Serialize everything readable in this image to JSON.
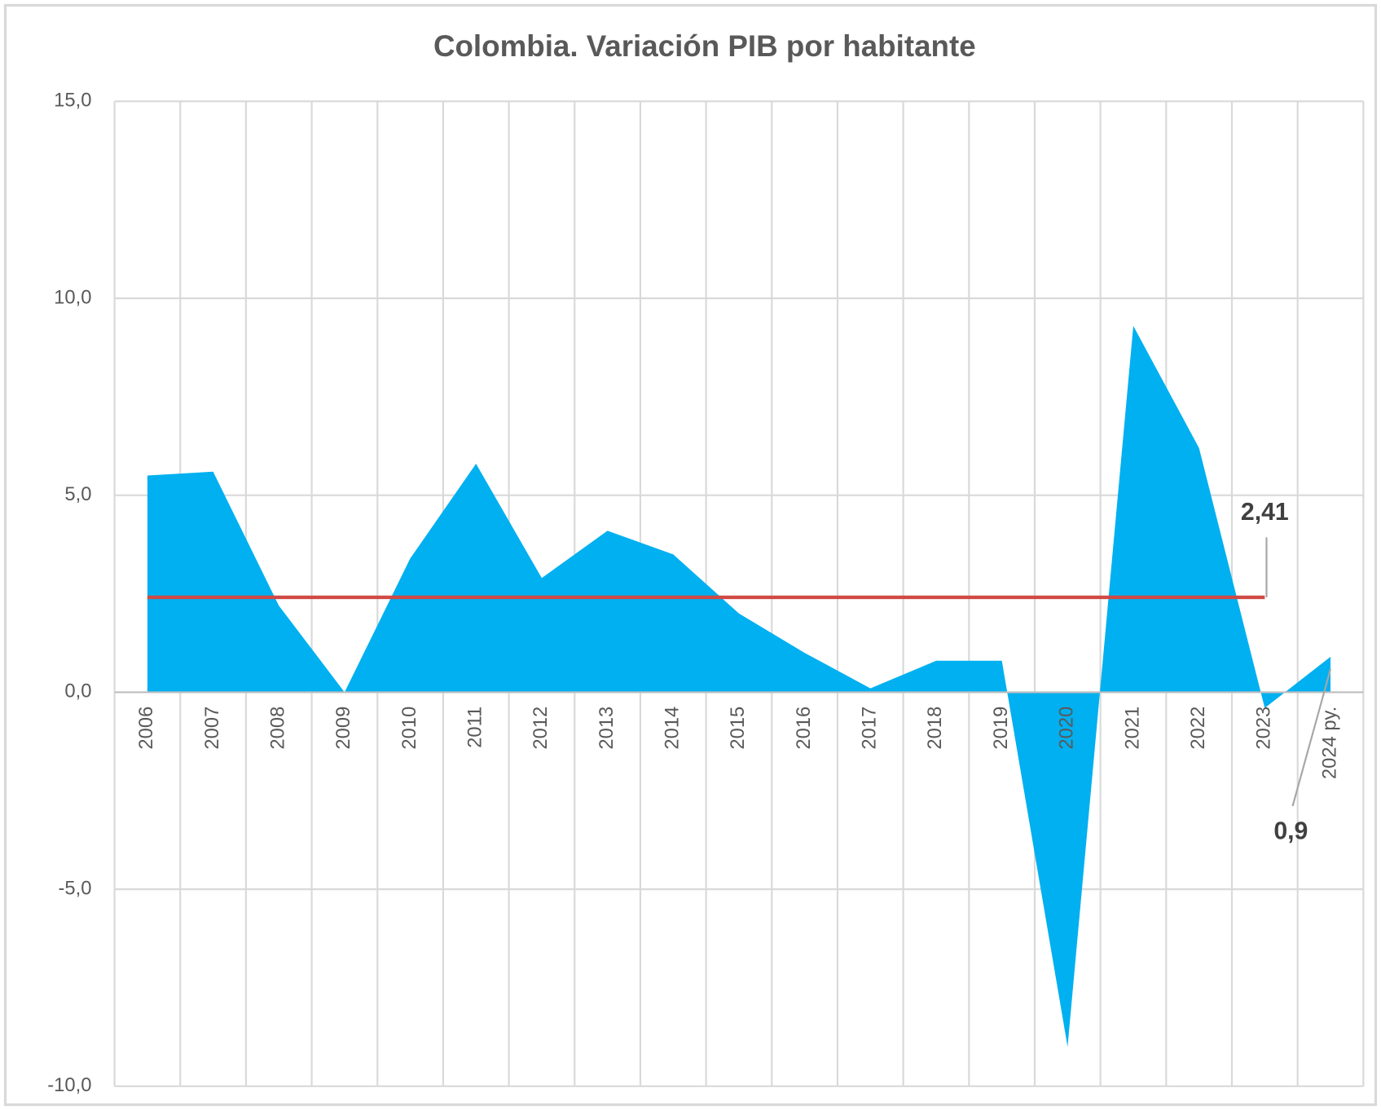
{
  "chart_data": {
    "type": "area",
    "title": "Colombia. Variación PIB por habitante",
    "categories": [
      "2006",
      "2007",
      "2008",
      "2009",
      "2010",
      "2011",
      "2012",
      "2013",
      "2014",
      "2015",
      "2016",
      "2017",
      "2018",
      "2019",
      "2020",
      "2021",
      "2022",
      "2023",
      "2024 py."
    ],
    "values": [
      5.5,
      5.6,
      2.2,
      0.0,
      3.4,
      5.8,
      2.9,
      4.1,
      3.5,
      2.0,
      1.0,
      0.1,
      0.8,
      0.8,
      -9.0,
      9.3,
      6.2,
      -0.4,
      0.9
    ],
    "value_labels": [
      null,
      null,
      null,
      null,
      null,
      null,
      null,
      null,
      null,
      null,
      null,
      null,
      null,
      null,
      null,
      null,
      null,
      null,
      "0,9"
    ],
    "color": "#00b0f0",
    "average": {
      "value": 2.41,
      "label": "2,41",
      "color": "#d04a45"
    },
    "ylim": [
      -10,
      15
    ],
    "yticks": [
      {
        "value": -10,
        "label": "-10,0"
      },
      {
        "value": -5,
        "label": "-5,0"
      },
      {
        "value": 0,
        "label": "0,0"
      },
      {
        "value": 5,
        "label": "5,0"
      },
      {
        "value": 10,
        "label": "10,0"
      },
      {
        "value": 15,
        "label": "15,0"
      }
    ],
    "grid": true
  }
}
